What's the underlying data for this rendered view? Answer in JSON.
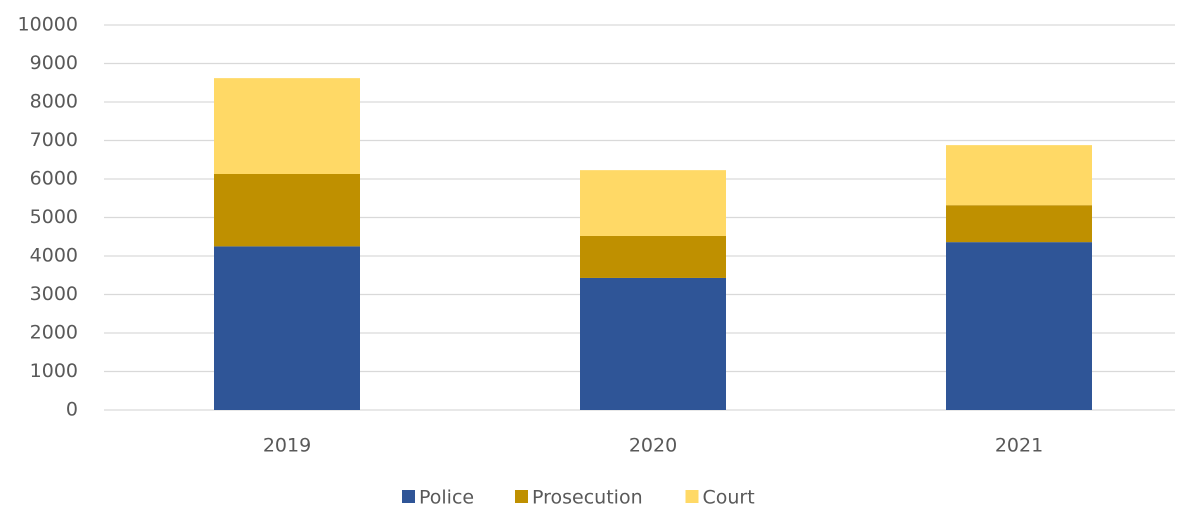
{
  "chart_data": {
    "type": "stacked_bar",
    "categories": [
      "2019",
      "2020",
      "2021"
    ],
    "series": [
      {
        "name": "Police",
        "color": "#2f5597",
        "values": [
          4250,
          3430,
          4360
        ]
      },
      {
        "name": "Prosecution",
        "color": "#bf9000",
        "values": [
          1880,
          1090,
          960
        ]
      },
      {
        "name": "Court",
        "color": "#ffd966",
        "values": [
          2490,
          1710,
          1560
        ]
      }
    ],
    "ylim": [
      0,
      10000
    ],
    "yticks": [
      0,
      1000,
      2000,
      3000,
      4000,
      5000,
      6000,
      7000,
      8000,
      9000,
      10000
    ],
    "grid": true,
    "legend": "bottom"
  }
}
